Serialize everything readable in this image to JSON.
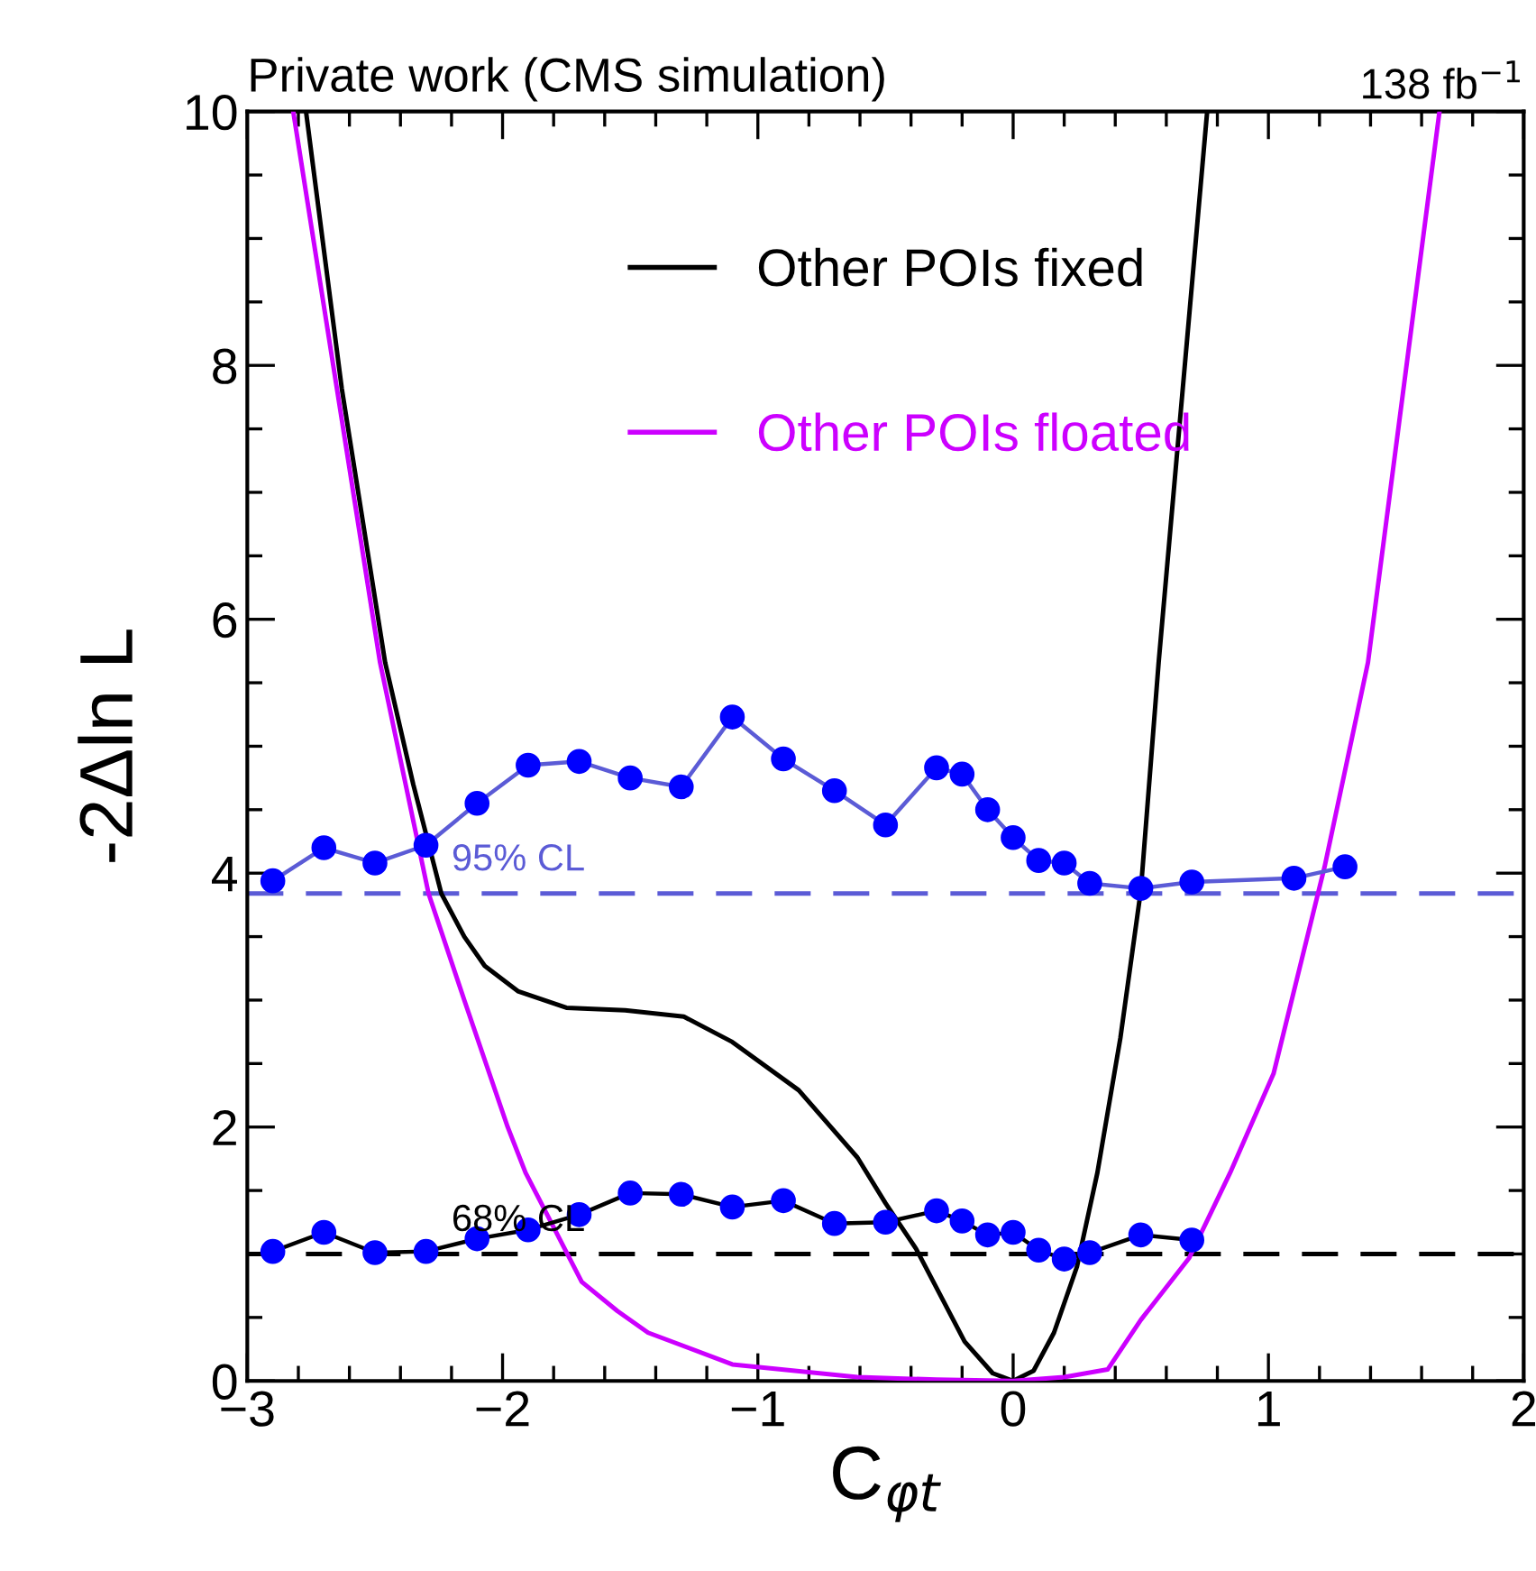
{
  "chart_data": {
    "type": "line",
    "title": "Private work (CMS simulation)",
    "xlabel": "C$_{φt}$",
    "ylabel": "-2Δln L",
    "annotations": [
      "138 fb$^{−1}$"
    ],
    "xlim": [
      -3,
      2
    ],
    "ylim": [
      0,
      10
    ],
    "xticks": [
      {
        "value": -3,
        "label": "−3"
      },
      {
        "value": -2,
        "label": "−2"
      },
      {
        "value": -1,
        "label": "−1"
      },
      0,
      1,
      2
    ],
    "yticks": [
      0,
      2,
      4,
      6,
      8,
      10
    ],
    "grid": false,
    "legend": "top",
    "line_style": "solid",
    "marker": "none",
    "series": [
      {
        "name": "Other POIs fixed",
        "color": "#000000",
        "x": [
          -2.77,
          -2.63,
          -2.46,
          -2.35,
          -2.24,
          -2.15,
          -2.07,
          -1.94,
          -1.75,
          -1.52,
          -1.29,
          -1.1,
          -0.84,
          -0.61,
          -0.5,
          -0.38,
          -0.19,
          -0.08,
          0,
          0.08,
          0.16,
          0.25,
          0.33,
          0.42,
          0.5,
          0.57,
          0.76
        ],
        "values": [
          10,
          7.82,
          5.66,
          4.7,
          3.84,
          3.5,
          3.27,
          3.07,
          2.94,
          2.92,
          2.87,
          2.67,
          2.29,
          1.76,
          1.4,
          1.04,
          0.31,
          0.06,
          0,
          0.08,
          0.38,
          0.9,
          1.64,
          2.7,
          3.86,
          5.66,
          10
        ]
      },
      {
        "name": "Other POIs floated",
        "color": "#cc00ff",
        "x": [
          -2.82,
          -2.48,
          -2.29,
          -2.15,
          -1.98,
          -1.91,
          -1.69,
          -1.55,
          -1.43,
          -1.1,
          -0.61,
          -0.3,
          0,
          0.2,
          0.37,
          0.5,
          0.69,
          0.85,
          1.02,
          1.22,
          1.39,
          1.67
        ],
        "values": [
          10,
          5.66,
          3.84,
          3.0,
          2.0,
          1.64,
          0.78,
          0.55,
          0.38,
          0.13,
          0.03,
          0.01,
          0,
          0.03,
          0.09,
          0.48,
          0.97,
          1.64,
          2.42,
          4.05,
          5.66,
          10
        ]
      },
      {
        "color": "#5b5bd6",
        "marker": "circle",
        "x": [
          -2.9,
          -2.7,
          -2.5,
          -2.3,
          -2.1,
          -1.9,
          -1.7,
          -1.5,
          -1.3,
          -1.1,
          -0.9,
          -0.7,
          -0.5,
          -0.3,
          -0.2,
          -0.1,
          0,
          0.1,
          0.2,
          0.3,
          0.5,
          0.7,
          1.1,
          1.3
        ],
        "values": [
          3.94,
          4.2,
          4.08,
          4.22,
          4.55,
          4.85,
          4.88,
          4.75,
          4.68,
          5.23,
          4.9,
          4.65,
          4.38,
          4.83,
          4.78,
          4.5,
          4.28,
          4.1,
          4.08,
          3.92,
          3.88,
          3.93,
          3.96,
          4.05
        ],
        "colors": [
          "#0000ff",
          "#0000ff",
          "#0000ff",
          "#0000ff",
          "#0000ff",
          "#0000ff",
          "#0000ff",
          "#0000ff",
          "#0000ff",
          "#0000ff",
          "#0000ff",
          "#0000ff",
          "#0000ff",
          "#0000ff",
          "#0000ff",
          "#0000ff",
          "#0000ff",
          "#0000ff",
          "#0000ff",
          "#0000ff",
          "#0000ff",
          "#0000ff",
          "#0000ff",
          "#0000ff"
        ]
      },
      {
        "color": "#000000",
        "marker": "circle",
        "x": [
          -2.9,
          -2.7,
          -2.5,
          -2.3,
          -2.1,
          -1.9,
          -1.7,
          -1.5,
          -1.3,
          -1.1,
          -0.9,
          -0.7,
          -0.5,
          -0.3,
          -0.2,
          -0.1,
          0,
          0.1,
          0.2,
          0.3,
          0.5,
          0.7
        ],
        "values": [
          1.02,
          1.17,
          1.01,
          1.02,
          1.12,
          1.19,
          1.31,
          1.48,
          1.47,
          1.37,
          1.42,
          1.24,
          1.25,
          1.34,
          1.26,
          1.15,
          1.17,
          1.03,
          0.96,
          1.01,
          1.15,
          1.11
        ],
        "colors": [
          "#0000ff",
          "#0000ff",
          "#0000ff",
          "#0000ff",
          "#0000ff",
          "#0000ff",
          "#0000ff",
          "#0000ff",
          "#0000ff",
          "#0000ff",
          "#0000ff",
          "#0000ff",
          "#0000ff",
          "#0000ff",
          "#0000ff",
          "#0000ff",
          "#0000ff",
          "#0000ff",
          "#0000ff",
          "#0000ff",
          "#0000ff",
          "#0000ff"
        ]
      }
    ],
    "ref_lines": [
      {
        "axis": "y",
        "value": 3.84,
        "label": "95% CL",
        "color": "#5b5bd6",
        "line_style": "dashed"
      },
      {
        "axis": "y",
        "value": 1,
        "label": "68% CL",
        "color": "#000000",
        "line_style": "dashed"
      }
    ]
  }
}
